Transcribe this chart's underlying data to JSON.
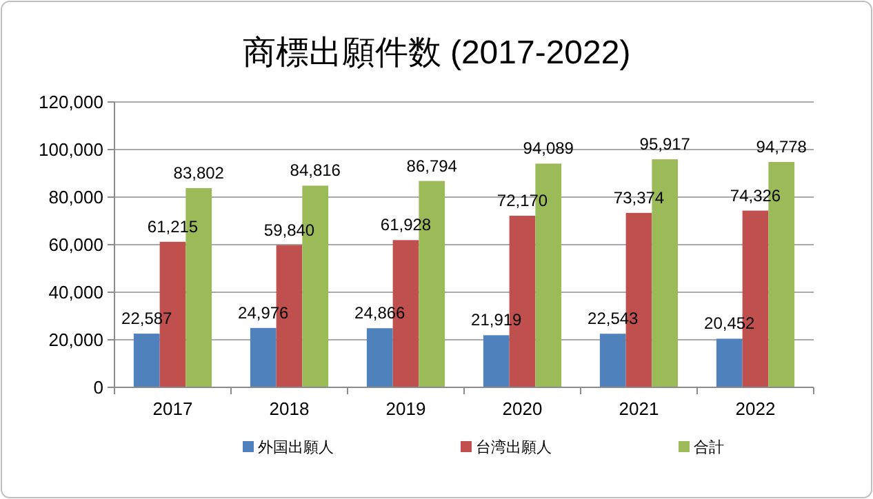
{
  "chart_data": {
    "type": "bar",
    "title": "商標出願件数 (2017-2022)",
    "categories": [
      "2017",
      "2018",
      "2019",
      "2020",
      "2021",
      "2022"
    ],
    "series": [
      {
        "name": "外国出願人",
        "color": "#4f81bd",
        "values": [
          22587,
          24976,
          24866,
          21919,
          22543,
          20452
        ],
        "value_labels": [
          "22,587",
          "24,976",
          "24,866",
          "21,919",
          "22,543",
          "20,452"
        ]
      },
      {
        "name": "台湾出願人",
        "color": "#c0504d",
        "values": [
          61215,
          59840,
          61928,
          72170,
          73374,
          74326
        ],
        "value_labels": [
          "61,215",
          "59,840",
          "61,928",
          "72,170",
          "73,374",
          "74,326"
        ]
      },
      {
        "name": "合計",
        "color": "#9bbb59",
        "values": [
          83802,
          84816,
          86794,
          94089,
          95917,
          94778
        ],
        "value_labels": [
          "83,802",
          "84,816",
          "86,794",
          "94,089",
          "95,917",
          "94,778"
        ]
      }
    ],
    "ylim": [
      0,
      120000
    ],
    "yticks": [
      {
        "value": 0,
        "label": "0"
      },
      {
        "value": 20000,
        "label": "20,000"
      },
      {
        "value": 40000,
        "label": "40,000"
      },
      {
        "value": 60000,
        "label": "60,000"
      },
      {
        "value": 80000,
        "label": "80,000"
      },
      {
        "value": 100000,
        "label": "100,000"
      },
      {
        "value": 120000,
        "label": "120,000"
      }
    ],
    "grid": "y",
    "legend": "bottom"
  }
}
